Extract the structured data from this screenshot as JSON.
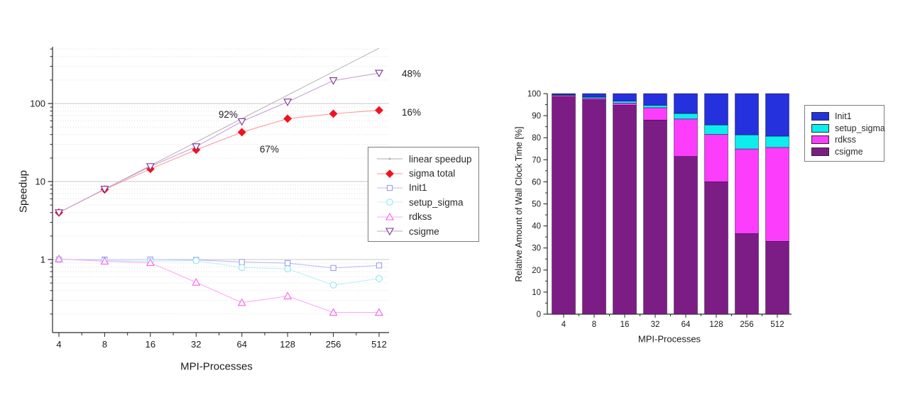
{
  "page": {
    "background": "#ffffff"
  },
  "chart_data": [
    {
      "type": "line",
      "title": "",
      "xlabel": "MPI-Processes",
      "ylabel": "Speedup",
      "xscale": "log2",
      "yscale": "log10",
      "x": [
        4,
        8,
        16,
        32,
        64,
        128,
        256,
        512
      ],
      "categories": [
        "4",
        "8",
        "16",
        "32",
        "64",
        "128",
        "256",
        "512"
      ],
      "yticks": [
        1,
        10,
        100
      ],
      "ylim": [
        0.12,
        530
      ],
      "grid": {
        "major_horizontal": true,
        "minor_dotted_horizontal": true
      },
      "legend_position": "overlay-right-middle",
      "series": [
        {
          "name": "linear speedup",
          "marker": "none",
          "color": "#ababab",
          "line_color": "#ababab",
          "values": [
            4,
            8,
            16,
            32,
            64,
            128,
            256,
            512
          ]
        },
        {
          "name": "sigma total",
          "marker": "diamond-filled",
          "color": "#f2121f",
          "line_color": "#fa9a9a",
          "values": [
            4,
            7.9,
            14.5,
            25.5,
            42.9,
            64,
            74,
            82
          ]
        },
        {
          "name": "Init1",
          "marker": "square-open",
          "color": "#9c9cee",
          "line_color": "#bcbcf4",
          "values": [
            1.0,
            1.0,
            1.0,
            0.99,
            0.93,
            0.9,
            0.78,
            0.84
          ]
        },
        {
          "name": "setup_sigma",
          "marker": "circle-open",
          "color": "#8de7f2",
          "line_color": "#bdf1f8",
          "values": [
            1.0,
            0.97,
            0.95,
            0.97,
            0.79,
            0.76,
            0.47,
            0.57
          ]
        },
        {
          "name": "rdkss",
          "marker": "triangle-up-open",
          "color": "#f661ea",
          "line_color": "#fcabf5",
          "values": [
            1.02,
            0.95,
            0.91,
            0.51,
            0.28,
            0.34,
            0.21,
            0.21
          ]
        },
        {
          "name": "csigme",
          "marker": "triangle-down-open",
          "color": "#7e3191",
          "line_color": "#c89fd6",
          "values": [
            4.0,
            8.0,
            15.6,
            28,
            58.9,
            105,
            197,
            245.8
          ]
        }
      ],
      "legend": [
        "linear speedup",
        "sigma total",
        "Init1",
        "setup_sigma",
        "rdkss",
        "csigme"
      ],
      "annotations": [
        {
          "text": "92%",
          "x": 52,
          "y": 72,
          "color": "#5e2d91",
          "align": "middle"
        },
        {
          "text": "67%",
          "x": 97,
          "y": 26,
          "color": "#fb434e",
          "align": "middle"
        },
        {
          "text": "48%",
          "x": 722,
          "y": 242,
          "color": "#5e2d91",
          "align": "start"
        },
        {
          "text": "16%",
          "x": 722,
          "y": 77,
          "color": "#fb434e",
          "align": "start"
        }
      ]
    },
    {
      "type": "stacked-bar",
      "title": "",
      "xlabel": "MPI-Processes",
      "ylabel": "Relative Amount of Wall Clock Time [%]",
      "categories": [
        "4",
        "8",
        "16",
        "32",
        "64",
        "128",
        "256",
        "512"
      ],
      "ylim": [
        0,
        100
      ],
      "yticks": [
        0,
        10,
        20,
        30,
        40,
        50,
        60,
        70,
        80,
        90,
        100
      ],
      "grid": {
        "major_horizontal": false
      },
      "legend_position": "right-of-plot",
      "series": [
        {
          "name": "csigme",
          "color": "#7c1d86",
          "values": [
            98.5,
            97.2,
            94.7,
            88,
            71.5,
            60,
            36.5,
            33
          ]
        },
        {
          "name": "rdkss",
          "color": "#fc3efc",
          "values": [
            0.6,
            0.6,
            1.0,
            5.6,
            17,
            21.5,
            38.4,
            42.6
          ]
        },
        {
          "name": "setup_sigma",
          "color": "#0deded",
          "values": [
            0.3,
            0.6,
            0.9,
            1.1,
            2.5,
            4.3,
            6.4,
            5.1
          ]
        },
        {
          "name": "Init1",
          "color": "#2531dc",
          "values": [
            0.6,
            1.6,
            3.4,
            5.3,
            9,
            14.2,
            18.7,
            19.3
          ]
        }
      ],
      "legend": [
        "Init1",
        "setup_sigma",
        "rdkss",
        "csigme"
      ]
    }
  ]
}
